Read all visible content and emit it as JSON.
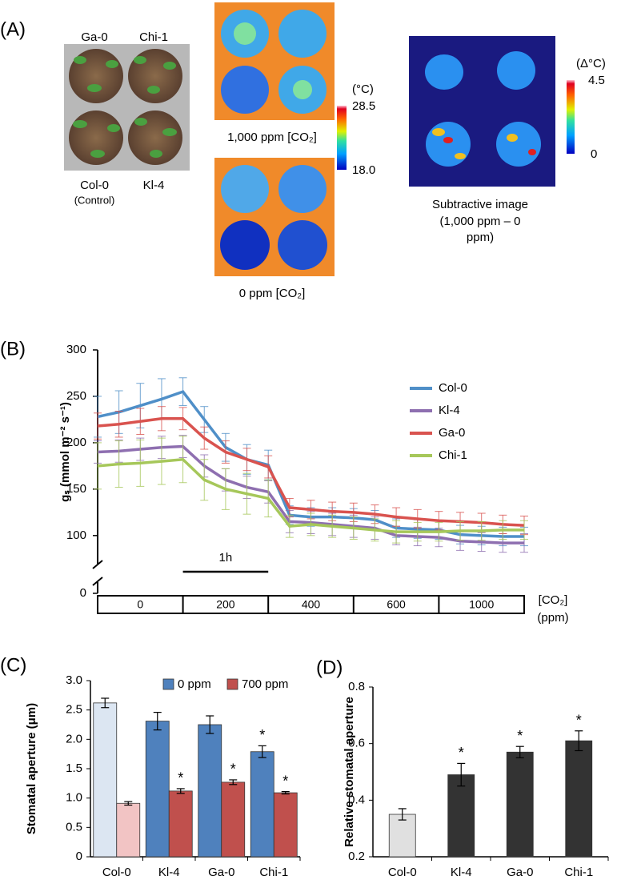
{
  "panel_a": {
    "label": "(A)",
    "photo": {
      "top_labels": [
        "Ga-0",
        "Chi-1"
      ],
      "bottom_labels": [
        "Col-0",
        "Kl-4"
      ],
      "control_note": "(Control)"
    },
    "thermal": {
      "unit": "(°C)",
      "max": "28.5",
      "min": "18.0",
      "top_caption": "1,000 ppm [CO₂]",
      "bottom_caption": "0 ppm  [CO₂]"
    },
    "subtractive": {
      "unit": "(Δ°C)",
      "max": "4.5",
      "min": "0",
      "caption": [
        "Subtractive image",
        "(1,000 ppm – 0",
        "ppm)"
      ]
    }
  },
  "chart_data": [
    {
      "type": "line",
      "panel": "(B)",
      "y_label": "gₛ (mmol m⁻² s⁻¹)",
      "x": [
        0,
        15,
        30,
        45,
        60,
        75,
        90,
        105,
        120,
        135,
        150,
        165,
        180,
        195,
        210,
        225,
        240,
        255,
        270,
        285,
        300
      ],
      "xlim": [
        0,
        300
      ],
      "ylim": [
        0,
        300
      ],
      "yticks": [
        0,
        100,
        150,
        200,
        250,
        300
      ],
      "axis_break": [
        0,
        80
      ],
      "scale_bar": {
        "label": "1h",
        "start": 60,
        "end": 120
      },
      "co2_segments": [
        "0",
        "200",
        "400",
        "600",
        "1000"
      ],
      "co2_label": [
        "[CO₂]",
        "(ppm)"
      ],
      "series": [
        {
          "name": "Col-0",
          "color": "#4f8fc8",
          "values": [
            228,
            233,
            240,
            247,
            255,
            225,
            195,
            182,
            176,
            122,
            120,
            120,
            119,
            117,
            108,
            107,
            106,
            101,
            100,
            99,
            99
          ],
          "errors": [
            22,
            23,
            24,
            22,
            15,
            14,
            15,
            16,
            16,
            10,
            10,
            10,
            10,
            10,
            10,
            10,
            10,
            10,
            10,
            10,
            10
          ]
        },
        {
          "name": "Kl-4",
          "color": "#8e6fb0",
          "values": [
            190,
            191,
            193,
            195,
            196,
            175,
            160,
            152,
            147,
            115,
            114,
            112,
            110,
            108,
            100,
            99,
            98,
            94,
            93,
            92,
            92
          ],
          "errors": [
            12,
            12,
            12,
            12,
            12,
            12,
            12,
            12,
            12,
            12,
            12,
            12,
            12,
            12,
            10,
            10,
            10,
            10,
            10,
            10,
            10
          ]
        },
        {
          "name": "Ga-0",
          "color": "#d9534f",
          "values": [
            218,
            220,
            223,
            226,
            226,
            205,
            190,
            182,
            174,
            130,
            128,
            126,
            125,
            123,
            120,
            118,
            116,
            115,
            114,
            112,
            111
          ],
          "errors": [
            14,
            14,
            14,
            13,
            12,
            12,
            12,
            12,
            12,
            10,
            10,
            10,
            10,
            10,
            10,
            10,
            10,
            10,
            10,
            10,
            10
          ]
        },
        {
          "name": "Chi-1",
          "color": "#a6c75a",
          "values": [
            175,
            177,
            178,
            180,
            182,
            160,
            150,
            145,
            140,
            110,
            112,
            110,
            108,
            106,
            104,
            104,
            104,
            105,
            105,
            106,
            106
          ],
          "errors": [
            25,
            25,
            25,
            25,
            25,
            22,
            22,
            22,
            20,
            12,
            12,
            12,
            12,
            12,
            12,
            10,
            10,
            10,
            10,
            10,
            10
          ]
        }
      ]
    },
    {
      "type": "bar",
      "panel": "(C)",
      "y_label": "Stomatal aperture (μm)",
      "categories": [
        "Col-0",
        "Kl-4",
        "Ga-0",
        "Chi-1"
      ],
      "ylim": [
        0,
        3
      ],
      "yticks": [
        0,
        0.5,
        {
          "value": 1,
          "label": "1.0"
        },
        1.5,
        {
          "value": 2,
          "label": "2.0"
        },
        2.5,
        {
          "value": 3,
          "label": "3.0"
        }
      ],
      "series": [
        {
          "name": "0 ppm",
          "color": "#4f81bd",
          "colors": [
            "#dce6f2",
            "#4f81bd",
            "#4f81bd",
            "#4f81bd"
          ],
          "values": [
            2.62,
            2.31,
            2.25,
            1.79
          ],
          "errors": [
            0.08,
            0.15,
            0.15,
            0.1
          ],
          "stars": [
            null,
            null,
            null,
            "*"
          ]
        },
        {
          "name": "700 ppm",
          "color": "#c0504d",
          "colors": [
            "#f2c4c4",
            "#c0504d",
            "#c0504d",
            "#c0504d"
          ],
          "values": [
            0.91,
            1.12,
            1.27,
            1.09
          ],
          "errors": [
            0.03,
            0.04,
            0.04,
            0.02
          ],
          "stars": [
            null,
            "*",
            "*",
            "*"
          ]
        }
      ]
    },
    {
      "type": "bar",
      "panel": "(D)",
      "y_label": "Relative stomatal aperture",
      "categories": [
        "Col-0",
        "Kl-4",
        "Ga-0",
        "Chi-1"
      ],
      "ylim": [
        0.2,
        0.8
      ],
      "yticks": [
        0.2,
        0.4,
        0.6,
        0.8
      ],
      "colors": [
        "#e0e0e0",
        "#333333",
        "#333333",
        "#333333"
      ],
      "values": [
        0.35,
        0.49,
        0.57,
        0.61
      ],
      "errors": [
        0.02,
        0.04,
        0.02,
        0.035
      ],
      "stars": [
        null,
        "*",
        "*",
        "*"
      ]
    }
  ]
}
